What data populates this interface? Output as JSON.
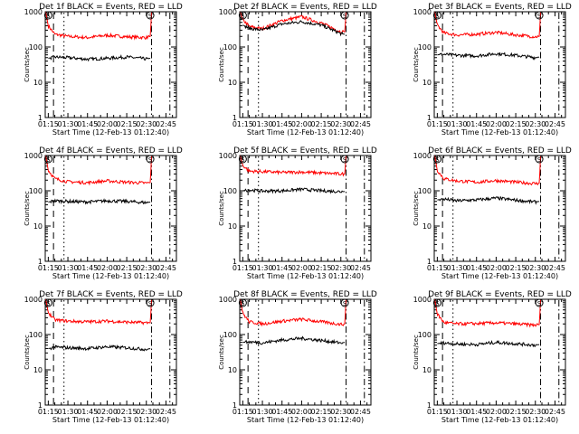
{
  "figure": {
    "background": "#ffffff"
  },
  "style": {
    "events_color": "#000000",
    "lld_color": "#ff0000",
    "axis_color": "#000000"
  },
  "shared": {
    "ylabel": "Counts/sec",
    "xlabel": "Start Time (12-Feb-13 01:12:40)",
    "xticks": [
      "01:15",
      "01:30",
      "01:45",
      "02:00",
      "02:15",
      "02:30",
      "02:45"
    ],
    "yticks": [
      "1",
      "10",
      "100",
      "1000"
    ],
    "marker_glyph": "S"
  },
  "chart_data": [
    {
      "type": "line",
      "title": "Det 1f BLACK = Events, RED = LLD",
      "xlabel": "Start Time (12-Feb-13 01:12:40)",
      "ylabel": "Counts/sec",
      "x_range": [
        "01:12:40",
        "02:53:00"
      ],
      "ylim": [
        1,
        1000
      ],
      "yscale": "log",
      "vlines": [
        {
          "time": "01:19",
          "style": "dashed"
        },
        {
          "time": "01:27",
          "style": "dotted"
        },
        {
          "time": "02:34",
          "style": "dash-dot"
        },
        {
          "time": "02:48",
          "style": "dash-dot"
        }
      ],
      "series": [
        {
          "name": "LLD",
          "color": "#ff0000",
          "x": [
            "01:13",
            "01:15",
            "01:20",
            "01:30",
            "01:45",
            "02:00",
            "02:15",
            "02:30",
            "02:33",
            "02:34"
          ],
          "values": [
            1000,
            400,
            230,
            200,
            185,
            215,
            195,
            185,
            200,
            1000
          ]
        },
        {
          "name": "Events",
          "color": "#000000",
          "x": [
            "01:15",
            "01:20",
            "01:30",
            "01:45",
            "02:00",
            "02:15",
            "02:30",
            "02:33"
          ],
          "values": [
            48,
            52,
            50,
            45,
            48,
            52,
            46,
            48
          ]
        }
      ]
    },
    {
      "type": "line",
      "title": "Det 2f BLACK = Events, RED = LLD",
      "xlabel": "Start Time (12-Feb-13 01:12:40)",
      "ylabel": "Counts/sec",
      "x_range": [
        "01:12:40",
        "02:53:00"
      ],
      "ylim": [
        1,
        1000
      ],
      "yscale": "log",
      "vlines": [
        {
          "time": "01:19",
          "style": "dashed"
        },
        {
          "time": "01:27",
          "style": "dotted"
        },
        {
          "time": "02:34",
          "style": "dash-dot"
        },
        {
          "time": "02:48",
          "style": "dash-dot"
        }
      ],
      "series": [
        {
          "name": "LLD",
          "color": "#ff0000",
          "x": [
            "01:13",
            "01:15",
            "01:20",
            "01:30",
            "01:45",
            "02:00",
            "02:15",
            "02:30",
            "02:33",
            "02:34"
          ],
          "values": [
            1000,
            600,
            380,
            330,
            560,
            720,
            480,
            270,
            270,
            1000
          ]
        },
        {
          "name": "Events",
          "color": "#000000",
          "x": [
            "01:15",
            "01:20",
            "01:30",
            "01:45",
            "02:00",
            "02:15",
            "02:30",
            "02:33"
          ],
          "values": [
            420,
            340,
            300,
            450,
            520,
            420,
            240,
            230
          ]
        }
      ]
    },
    {
      "type": "line",
      "title": "Det 3f BLACK = Events, RED = LLD",
      "xlabel": "Start Time (12-Feb-13 01:12:40)",
      "ylabel": "Counts/sec",
      "x_range": [
        "01:12:40",
        "02:53:00"
      ],
      "ylim": [
        1,
        1000
      ],
      "yscale": "log",
      "vlines": [
        {
          "time": "01:19",
          "style": "dashed"
        },
        {
          "time": "01:27",
          "style": "dotted"
        },
        {
          "time": "02:34",
          "style": "dash-dot"
        },
        {
          "time": "02:48",
          "style": "dash-dot"
        }
      ],
      "series": [
        {
          "name": "LLD",
          "color": "#ff0000",
          "x": [
            "01:13",
            "01:15",
            "01:20",
            "01:30",
            "01:45",
            "02:00",
            "02:15",
            "02:30",
            "02:33",
            "02:34"
          ],
          "values": [
            1000,
            420,
            250,
            220,
            230,
            260,
            220,
            195,
            200,
            1000
          ]
        },
        {
          "name": "Events",
          "color": "#000000",
          "x": [
            "01:15",
            "01:20",
            "01:30",
            "01:45",
            "02:00",
            "02:15",
            "02:30",
            "02:33"
          ],
          "values": [
            60,
            62,
            58,
            56,
            65,
            58,
            50,
            52
          ]
        }
      ]
    },
    {
      "type": "line",
      "title": "Det 4f BLACK = Events, RED = LLD",
      "xlabel": "Start Time (12-Feb-13 01:12:40)",
      "ylabel": "Counts/sec",
      "x_range": [
        "01:12:40",
        "02:53:00"
      ],
      "ylim": [
        1,
        1000
      ],
      "yscale": "log",
      "vlines": [
        {
          "time": "01:19",
          "style": "dashed"
        },
        {
          "time": "01:27",
          "style": "dotted"
        },
        {
          "time": "02:34",
          "style": "dash-dot"
        },
        {
          "time": "02:48",
          "style": "dash-dot"
        }
      ],
      "series": [
        {
          "name": "LLD",
          "color": "#ff0000",
          "x": [
            "01:13",
            "01:15",
            "01:20",
            "01:30",
            "01:45",
            "02:00",
            "02:15",
            "02:30",
            "02:33",
            "02:34"
          ],
          "values": [
            1000,
            380,
            220,
            180,
            170,
            190,
            175,
            165,
            170,
            1000
          ]
        },
        {
          "name": "Events",
          "color": "#000000",
          "x": [
            "01:15",
            "01:20",
            "01:30",
            "01:45",
            "02:00",
            "02:15",
            "02:30",
            "02:33"
          ],
          "values": [
            48,
            52,
            50,
            48,
            52,
            50,
            46,
            48
          ]
        }
      ]
    },
    {
      "type": "line",
      "title": "Det 5f BLACK = Events, RED = LLD",
      "xlabel": "Start Time (12-Feb-13 01:12:40)",
      "ylabel": "Counts/sec",
      "x_range": [
        "01:12:40",
        "02:53:00"
      ],
      "ylim": [
        1,
        1000
      ],
      "yscale": "log",
      "vlines": [
        {
          "time": "01:19",
          "style": "dashed"
        },
        {
          "time": "01:27",
          "style": "dotted"
        },
        {
          "time": "02:34",
          "style": "dash-dot"
        },
        {
          "time": "02:48",
          "style": "dash-dot"
        }
      ],
      "series": [
        {
          "name": "LLD",
          "color": "#ff0000",
          "x": [
            "01:13",
            "01:15",
            "01:20",
            "01:30",
            "01:45",
            "02:00",
            "02:15",
            "02:30",
            "02:33",
            "02:34"
          ],
          "values": [
            1000,
            520,
            360,
            350,
            330,
            340,
            320,
            300,
            300,
            1000
          ]
        },
        {
          "name": "Events",
          "color": "#000000",
          "x": [
            "01:15",
            "01:20",
            "01:30",
            "01:45",
            "02:00",
            "02:15",
            "02:30",
            "02:33"
          ],
          "values": [
            100,
            105,
            98,
            100,
            110,
            100,
            95,
            95
          ]
        }
      ]
    },
    {
      "type": "line",
      "title": "Det 6f BLACK = Events, RED = LLD",
      "xlabel": "Start Time (12-Feb-13 01:12:40)",
      "ylabel": "Counts/sec",
      "x_range": [
        "01:12:40",
        "02:53:00"
      ],
      "ylim": [
        1,
        1000
      ],
      "yscale": "log",
      "vlines": [
        {
          "time": "01:19",
          "style": "dashed"
        },
        {
          "time": "01:27",
          "style": "dotted"
        },
        {
          "time": "02:34",
          "style": "dash-dot"
        },
        {
          "time": "02:48",
          "style": "dash-dot"
        }
      ],
      "series": [
        {
          "name": "LLD",
          "color": "#ff0000",
          "x": [
            "01:13",
            "01:15",
            "01:20",
            "01:30",
            "01:45",
            "02:00",
            "02:15",
            "02:30",
            "02:33",
            "02:34"
          ],
          "values": [
            1000,
            380,
            220,
            190,
            175,
            195,
            175,
            160,
            165,
            1000
          ]
        },
        {
          "name": "Events",
          "color": "#000000",
          "x": [
            "01:15",
            "01:20",
            "01:30",
            "01:45",
            "02:00",
            "02:15",
            "02:30",
            "02:33"
          ],
          "values": [
            55,
            58,
            52,
            55,
            62,
            54,
            48,
            50
          ]
        }
      ]
    },
    {
      "type": "line",
      "title": "Det 7f BLACK = Events, RED = LLD",
      "xlabel": "Start Time (12-Feb-13 01:12:40)",
      "ylabel": "Counts/sec",
      "x_range": [
        "01:12:40",
        "02:53:00"
      ],
      "ylim": [
        1,
        1000
      ],
      "yscale": "log",
      "vlines": [
        {
          "time": "01:19",
          "style": "dashed"
        },
        {
          "time": "01:27",
          "style": "dotted"
        },
        {
          "time": "02:34",
          "style": "dash-dot"
        },
        {
          "time": "02:48",
          "style": "dash-dot"
        }
      ],
      "series": [
        {
          "name": "LLD",
          "color": "#ff0000",
          "x": [
            "01:13",
            "01:15",
            "01:20",
            "01:30",
            "01:45",
            "02:00",
            "02:15",
            "02:30",
            "02:33",
            "02:34"
          ],
          "values": [
            1000,
            420,
            260,
            240,
            230,
            240,
            225,
            215,
            215,
            1000
          ]
        },
        {
          "name": "Events",
          "color": "#000000",
          "x": [
            "01:15",
            "01:20",
            "01:30",
            "01:45",
            "02:00",
            "02:15",
            "02:30",
            "02:33"
          ],
          "values": [
            40,
            44,
            42,
            40,
            45,
            42,
            38,
            40
          ]
        }
      ]
    },
    {
      "type": "line",
      "title": "Det 8f BLACK = Events, RED = LLD",
      "xlabel": "Start Time (12-Feb-13 01:12:40)",
      "ylabel": "Counts/sec",
      "x_range": [
        "01:12:40",
        "02:53:00"
      ],
      "ylim": [
        1,
        1000
      ],
      "yscale": "log",
      "vlines": [
        {
          "time": "01:19",
          "style": "dashed"
        },
        {
          "time": "01:27",
          "style": "dotted"
        },
        {
          "time": "02:34",
          "style": "dash-dot"
        },
        {
          "time": "02:48",
          "style": "dash-dot"
        }
      ],
      "series": [
        {
          "name": "LLD",
          "color": "#ff0000",
          "x": [
            "01:13",
            "01:15",
            "01:20",
            "01:30",
            "01:45",
            "02:00",
            "02:15",
            "02:30",
            "02:33",
            "02:34"
          ],
          "values": [
            1000,
            400,
            230,
            200,
            240,
            270,
            230,
            195,
            200,
            1000
          ]
        },
        {
          "name": "Events",
          "color": "#000000",
          "x": [
            "01:15",
            "01:20",
            "01:30",
            "01:45",
            "02:00",
            "02:15",
            "02:30",
            "02:33"
          ],
          "values": [
            60,
            62,
            58,
            70,
            78,
            68,
            58,
            60
          ]
        }
      ]
    },
    {
      "type": "line",
      "title": "Det 9f BLACK = Events, RED = LLD",
      "xlabel": "Start Time (12-Feb-13 01:12:40)",
      "ylabel": "Counts/sec",
      "x_range": [
        "01:12:40",
        "02:53:00"
      ],
      "ylim": [
        1,
        1000
      ],
      "yscale": "log",
      "vlines": [
        {
          "time": "01:19",
          "style": "dashed"
        },
        {
          "time": "01:27",
          "style": "dotted"
        },
        {
          "time": "02:34",
          "style": "dash-dot"
        },
        {
          "time": "02:48",
          "style": "dash-dot"
        }
      ],
      "series": [
        {
          "name": "LLD",
          "color": "#ff0000",
          "x": [
            "01:13",
            "01:15",
            "01:20",
            "01:30",
            "01:45",
            "02:00",
            "02:15",
            "02:30",
            "02:33",
            "02:34"
          ],
          "values": [
            1000,
            380,
            220,
            200,
            205,
            215,
            200,
            185,
            190,
            1000
          ]
        },
        {
          "name": "Events",
          "color": "#000000",
          "x": [
            "01:15",
            "01:20",
            "01:30",
            "01:45",
            "02:00",
            "02:15",
            "02:30",
            "02:33"
          ],
          "values": [
            55,
            58,
            54,
            52,
            60,
            55,
            50,
            52
          ]
        }
      ]
    }
  ]
}
